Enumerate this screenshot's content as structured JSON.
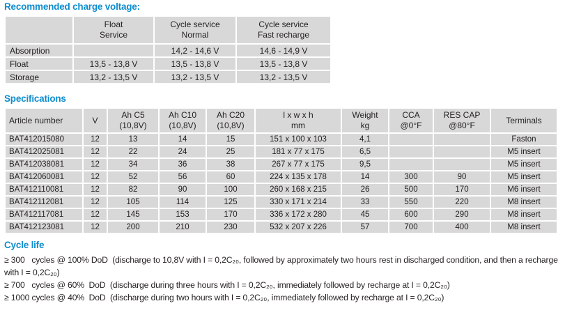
{
  "colors": {
    "accent": "#0e8dce",
    "cell_bg": "#d8d8d8",
    "text": "#231f20"
  },
  "charge_voltage": {
    "title": "Recommended charge voltage:",
    "col_headers": [
      {
        "lines": []
      },
      {
        "lines": [
          "Float",
          "Service"
        ]
      },
      {
        "lines": [
          "Cycle service",
          "Normal"
        ]
      },
      {
        "lines": [
          "Cycle service",
          "Fast recharge"
        ]
      }
    ],
    "rows": [
      {
        "label": "Absorption",
        "values": [
          "",
          "14,2 - 14,6 V",
          "14,6 - 14,9 V"
        ]
      },
      {
        "label": "Float",
        "values": [
          "13,5 - 13,8 V",
          "13,5 - 13,8 V",
          "13,5 - 13,8 V"
        ]
      },
      {
        "label": "Storage",
        "values": [
          "13,2 - 13,5 V",
          "13,2 - 13,5 V",
          "13,2 - 13,5 V"
        ]
      }
    ]
  },
  "specifications": {
    "title": "Specifications",
    "col_headers": [
      {
        "lines": [
          "Article number"
        ]
      },
      {
        "lines": [
          "V"
        ]
      },
      {
        "lines": [
          "Ah C5",
          "(10,8V)"
        ]
      },
      {
        "lines": [
          "Ah C10",
          "(10,8V)"
        ]
      },
      {
        "lines": [
          "Ah C20",
          "(10,8V)"
        ]
      },
      {
        "lines": [
          "l x w x h",
          "mm"
        ]
      },
      {
        "lines": [
          "Weight",
          "kg"
        ]
      },
      {
        "lines": [
          "CCA",
          "@0°F"
        ]
      },
      {
        "lines": [
          "RES CAP",
          "@80°F"
        ]
      },
      {
        "lines": [
          "Terminals"
        ]
      }
    ],
    "rows": [
      [
        "BAT412015080",
        "12",
        "13",
        "14",
        "15",
        "151 x 100 x 103",
        "4,1",
        "",
        "",
        "Faston"
      ],
      [
        "BAT412025081",
        "12",
        "22",
        "24",
        "25",
        "181 x 77 x 175",
        "6,5",
        "",
        "",
        "M5 insert"
      ],
      [
        "BAT412038081",
        "12",
        "34",
        "36",
        "38",
        "267 x 77 x 175",
        "9,5",
        "",
        "",
        "M5 insert"
      ],
      [
        "BAT412060081",
        "12",
        "52",
        "56",
        "60",
        "224 x 135 x 178",
        "14",
        "300",
        "90",
        "M5 insert"
      ],
      [
        "BAT412110081",
        "12",
        "82",
        "90",
        "100",
        "260 x 168 x 215",
        "26",
        "500",
        "170",
        "M6 insert"
      ],
      [
        "BAT412112081",
        "12",
        "105",
        "114",
        "125",
        "330 x 171 x 214",
        "33",
        "550",
        "220",
        "M8 insert"
      ],
      [
        "BAT412117081",
        "12",
        "145",
        "153",
        "170",
        "336 x 172 x 280",
        "45",
        "600",
        "290",
        "M8 insert"
      ],
      [
        "BAT412123081",
        "12",
        "200",
        "210",
        "230",
        "532 x 207 x 226",
        "57",
        "700",
        "400",
        "M8 insert"
      ]
    ]
  },
  "cycle_life": {
    "title": "Cycle life",
    "lines": [
      "≥ 300   cycles @ 100% DoD  (discharge to 10,8V with I = 0,2C₂₀, followed by approximately two hours rest in discharged condition, and then a recharge with I = 0,2C₂₀)",
      "≥ 700   cycles @ 60%  DoD  (discharge during three hours with I = 0,2C₂₀, immediately followed by recharge at I = 0,2C₂₀)",
      "≥ 1000 cycles @ 40%  DoD  (discharge during two hours with I = 0,2C₂₀, immediately followed by recharge at I = 0,2C₂₀)"
    ]
  }
}
